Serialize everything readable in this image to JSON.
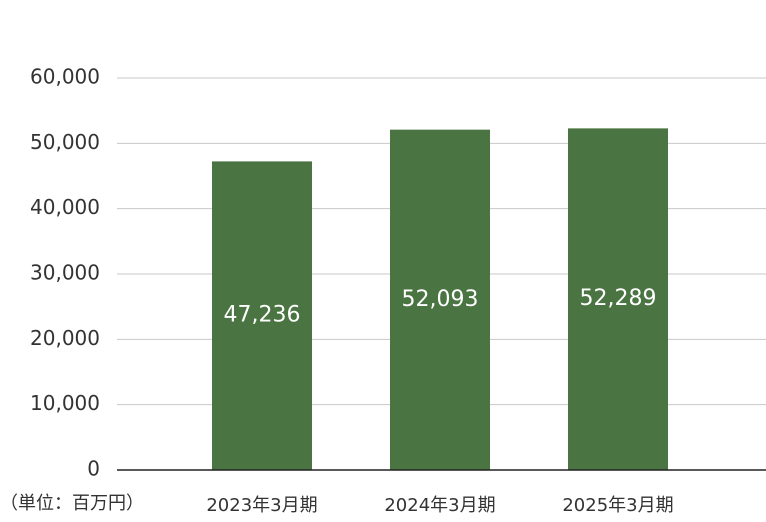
{
  "chart_data": {
    "type": "bar",
    "unit_label": "（単位：百万円）",
    "categories": [
      "2023年3月期",
      "2024年3月期",
      "2025年3月期"
    ],
    "values": [
      47236,
      52093,
      52289
    ],
    "value_labels": [
      "47,236",
      "52,093",
      "52,289"
    ],
    "color": "#4a7441",
    "ylim": [
      0,
      60000
    ],
    "yticks": [
      0,
      {
        "value": 10000,
        "label": "10,000"
      },
      {
        "value": 20000,
        "label": "20,000"
      },
      {
        "value": 30000,
        "label": "30,000"
      },
      {
        "value": 40000,
        "label": "40,000"
      },
      {
        "value": 50000,
        "label": "50,000"
      },
      {
        "value": 60000,
        "label": "60,000"
      }
    ],
    "grid": true
  }
}
